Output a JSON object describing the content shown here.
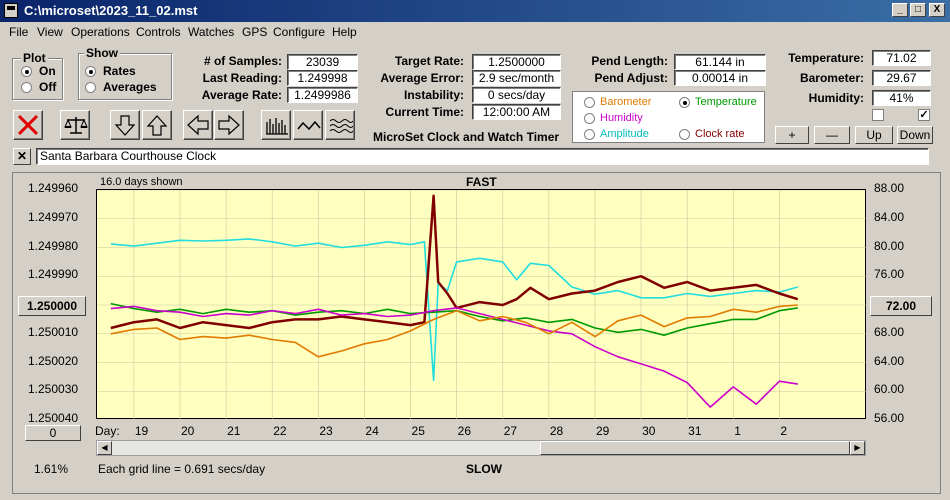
{
  "window": {
    "title": "C:\\microset\\2023_11_02.mst",
    "controls": [
      "_",
      "□",
      "X"
    ]
  },
  "menu": [
    "File",
    "View",
    "Operations",
    "Controls",
    "Watches",
    "GPS",
    "Configure",
    "Help"
  ],
  "plot_group": {
    "title": "Plot",
    "options": [
      "On",
      "Off"
    ],
    "selected": "On"
  },
  "show_group": {
    "title": "Show",
    "options": [
      "Rates",
      "Averages"
    ],
    "selected": "Rates"
  },
  "stats": {
    "samples_label": "# of Samples:",
    "samples": "23039",
    "last_reading_label": "Last Reading:",
    "last_reading": "1.249998",
    "average_rate_label": "Average Rate:",
    "average_rate": "1.2499986"
  },
  "targets": {
    "target_rate_label": "Target Rate:",
    "target_rate": "1.2500000",
    "average_error_label": "Average Error:",
    "average_error": "2.9 sec/month",
    "instability_label": "Instability:",
    "instability": "0 secs/day",
    "current_time_label": "Current Time:",
    "current_time": "12:00:00 AM"
  },
  "pendulum": {
    "length_label": "Pend Length:",
    "length": "61.144 in",
    "adjust_label": "Pend Adjust:",
    "adjust": "0.00014 in"
  },
  "env": {
    "temperature_label": "Temperature:",
    "temperature": "71.02",
    "barometer_label": "Barometer:",
    "barometer": "29.67",
    "humidity_label": "Humidity:",
    "humidity": "41%"
  },
  "channel_select": {
    "items": [
      "Barometer",
      "Temperature",
      "Humidity",
      "Amplitude",
      "Clock rate"
    ],
    "selected": "Temperature",
    "colors": {
      "Barometer": "#e07b00",
      "Temperature": "#009900",
      "Humidity": "#cc00cc",
      "Amplitude": "#00bbbb",
      "Clock rate": "#800000"
    }
  },
  "scale_buttons": [
    "+",
    "—",
    "Up",
    "Down"
  ],
  "app_caption": "MicroSet Clock and Watch Timer",
  "clock_name": "Santa Barbara Courthouse Clock",
  "toolbar_icons": [
    "close-red-x-icon",
    "balance-scale-icon",
    "arrow-down-icon",
    "arrow-up-icon",
    "arrow-left-icon",
    "arrow-right-icon",
    "bar-graph-icon",
    "wave-icon",
    "multi-wave-icon"
  ],
  "chart": {
    "days_shown": "16.0 days shown",
    "top_label": "FAST",
    "bottom_label": "SLOW",
    "left_center_button": "1.250000",
    "right_center_button": "72.00",
    "left_bottom_button": "0",
    "percent": "1.61%",
    "grid_note": "Each grid line = 0.691 secs/day",
    "day_label": "Day:"
  },
  "chart_data": {
    "type": "line",
    "xlabel": "Day:",
    "x_ticks": [
      "19",
      "20",
      "21",
      "22",
      "23",
      "24",
      "25",
      "26",
      "27",
      "28",
      "29",
      "30",
      "31",
      "1",
      "2"
    ],
    "y_left_ticks": [
      "1.249960",
      "1.249970",
      "1.249980",
      "1.249990",
      "1.250000",
      "1.250010",
      "1.250020",
      "1.250030",
      "1.250040"
    ],
    "y_left_range": [
      1.24996,
      1.25004
    ],
    "y_left_inverted": true,
    "y_right_ticks": [
      "88.00",
      "84.00",
      "80.00",
      "76.00",
      "72.00",
      "68.00",
      "64.00",
      "60.00",
      "56.00"
    ],
    "y_right_range": [
      56,
      88
    ],
    "top_label": "FAST",
    "bottom_label": "SLOW",
    "series": [
      {
        "name": "Amplitude",
        "color": "#22dddd",
        "axis": "right",
        "x": [
          18.5,
          19,
          19.5,
          20,
          20.5,
          21,
          21.5,
          22,
          22.5,
          23,
          23.5,
          24,
          24.5,
          25,
          25.3,
          25.5,
          25.6,
          25.8,
          26,
          26.5,
          27,
          27.3,
          27.6,
          28,
          28.5,
          29,
          29.5,
          30,
          30.5,
          31,
          31.5,
          1,
          1.5,
          2,
          2.4
        ],
        "y": [
          80.5,
          80.2,
          80.6,
          81,
          80.9,
          81,
          81.2,
          80.8,
          80.2,
          80.6,
          80,
          80.3,
          80.8,
          80.4,
          80.8,
          61.5,
          75,
          74,
          78,
          78.5,
          78,
          75.5,
          77.8,
          77.5,
          74.5,
          73.5,
          74,
          73,
          73,
          73.6,
          73.2,
          73.6,
          74,
          73.8,
          74.5
        ]
      },
      {
        "name": "Clock rate",
        "color": "#800000",
        "axis": "left",
        "x": [
          18.5,
          19,
          19.5,
          20,
          20.5,
          21,
          21.5,
          22,
          22.5,
          23,
          23.5,
          24,
          24.5,
          25,
          25.3,
          25.5,
          25.6,
          25.8,
          26,
          26.5,
          27,
          27.3,
          27.6,
          28,
          28.5,
          29,
          29.5,
          30,
          30.5,
          31,
          31.5,
          1,
          1.5,
          2,
          2.4
        ],
        "y": [
          1.250008,
          1.250006,
          1.250005,
          1.250008,
          1.250006,
          1.250007,
          1.250008,
          1.250006,
          1.250005,
          1.250005,
          1.250004,
          1.250005,
          1.250006,
          1.250007,
          1.250006,
          1.249962,
          1.249992,
          1.249996,
          1.250001,
          1.249999,
          1.25,
          1.249998,
          1.249994,
          1.249998,
          1.249996,
          1.249995,
          1.249992,
          1.24999,
          1.249994,
          1.249992,
          1.249995,
          1.249994,
          1.249993,
          1.249996,
          1.249998
        ]
      },
      {
        "name": "Temperature",
        "color": "#009900",
        "axis": "right",
        "x": [
          18.5,
          19,
          19.5,
          20,
          20.5,
          21,
          21.5,
          22,
          22.5,
          23,
          23.5,
          24,
          24.5,
          25,
          25.5,
          26,
          26.5,
          27,
          27.5,
          28,
          28.5,
          29,
          29.5,
          30,
          30.5,
          31,
          31.5,
          1,
          1.5,
          2,
          2.4
        ],
        "y": [
          72.2,
          71.5,
          71,
          71.4,
          70.8,
          71.4,
          71,
          71.2,
          70.6,
          71,
          71.2,
          70.8,
          71.4,
          70.8,
          71,
          71.2,
          70.4,
          69.8,
          70.2,
          69.6,
          70,
          68.8,
          68.2,
          68.6,
          67.8,
          68.8,
          69.4,
          70,
          70,
          71.2,
          71.6
        ]
      },
      {
        "name": "Humidity",
        "color": "#cc00cc",
        "axis": "right",
        "x": [
          18.5,
          19,
          19.5,
          20,
          20.5,
          21,
          21.5,
          22,
          22.5,
          23,
          23.5,
          24,
          24.5,
          25,
          25.5,
          26,
          26.5,
          27,
          27.5,
          28,
          28.5,
          29,
          29.5,
          30,
          30.5,
          31,
          31.5,
          1,
          1.5,
          2,
          2.4
        ],
        "y": [
          71.5,
          71.8,
          71.2,
          71,
          70.4,
          70.8,
          70.6,
          71.2,
          70.8,
          71.4,
          70.6,
          70.8,
          70.4,
          70.6,
          71.2,
          71.6,
          70.8,
          70,
          69.2,
          68.4,
          68,
          66.2,
          64.8,
          63.8,
          62.8,
          61.2,
          57.8,
          60.6,
          58.2,
          61.4,
          61
        ]
      },
      {
        "name": "Barometer",
        "color": "#e07b00",
        "axis": "right",
        "x": [
          18.5,
          19,
          19.5,
          20,
          20.5,
          21,
          21.5,
          22,
          22.5,
          23,
          23.5,
          24,
          24.5,
          25,
          25.5,
          26,
          26.5,
          27,
          27.5,
          28,
          28.5,
          29,
          29.5,
          30,
          30.5,
          31,
          31.5,
          1,
          1.5,
          2,
          2.4
        ],
        "y": [
          68,
          68.6,
          68.8,
          67.2,
          67.6,
          67.4,
          67.8,
          67.2,
          66.8,
          64.8,
          65.6,
          66.6,
          67.2,
          68.4,
          70,
          71.2,
          69.8,
          70.4,
          69.6,
          68,
          69.6,
          67.6,
          69.8,
          70.6,
          69,
          70.2,
          70.4,
          71.4,
          71,
          71.8,
          72
        ]
      }
    ]
  }
}
